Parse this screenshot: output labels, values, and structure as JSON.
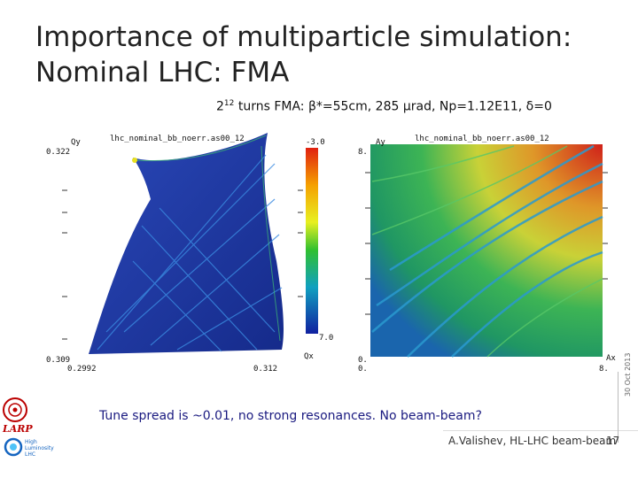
{
  "slide": {
    "title_line1": "Importance of multiparticle simulation:",
    "title_line2": "Nominal LHC: FMA",
    "subtitle_base": "2",
    "subtitle_exp": "12",
    "subtitle_rest": " turns FMA: β*=55cm, 285 μrad, Np=1.12E11, δ=0",
    "note": "Tune spread is ~0.01, no strong resonances. No beam-beam?",
    "footer": "A.Valishev, HL-LHC beam-beam",
    "page_number": "17",
    "date": "30 Oct 2013",
    "logo_larp": "LARP",
    "logo_hl": "High\nLuminosity\nLHC"
  },
  "left_plot": {
    "file_label": "lhc_nominal_bb_noerr.as00_12",
    "y_axis_label": "Qy",
    "x_axis_label": "Qx",
    "y_top": "0.322",
    "y_bottom": "0.309",
    "x_left": "0.2992",
    "x_right": "0.312",
    "colorbar_top": "-3.0",
    "colorbar_bottom": "7.0"
  },
  "right_plot": {
    "file_label": "lhc_nominal_bb_noerr.as00_12",
    "y_axis_label": "Ay",
    "x_axis_label": "Ax",
    "y_top": "8.",
    "y_bottom": "0.",
    "x_left": "0.",
    "x_right": "8."
  },
  "colors": {
    "title": "#222222",
    "note": "#1a1a80",
    "map_dark_blue": "#1a2a8a",
    "colorbar_red": "#e02010"
  }
}
